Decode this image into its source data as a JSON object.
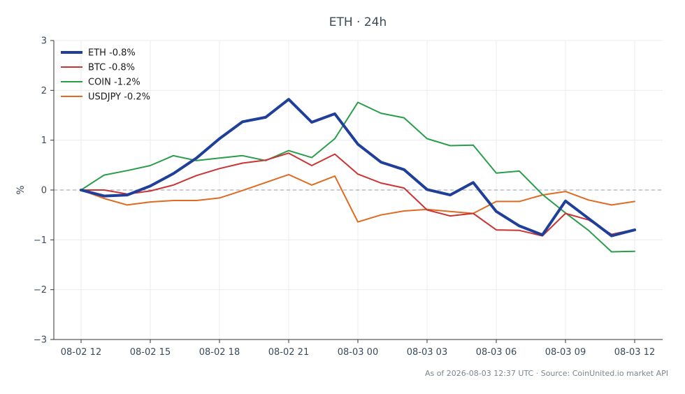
{
  "chart_data": {
    "type": "line",
    "title": "ETH · 24h",
    "xlabel": "",
    "ylabel": "%",
    "ylim": [
      -3,
      3
    ],
    "yticks": [
      3,
      2,
      1,
      0,
      -1,
      -2,
      -3
    ],
    "ytick_labels": [
      "3",
      "2",
      "1",
      "0",
      "−1",
      "−2",
      "−3"
    ],
    "x": [
      0,
      1,
      2,
      3,
      4,
      5,
      6,
      7,
      8,
      9,
      10,
      11,
      12,
      13,
      14,
      15,
      16,
      17,
      18,
      19,
      20,
      21,
      22,
      23,
      24
    ],
    "xticks": [
      0,
      3,
      6,
      9,
      12,
      15,
      18,
      21,
      24
    ],
    "xtick_labels": [
      "08-02 12",
      "08-02 15",
      "08-02 18",
      "08-02 21",
      "08-03 00",
      "08-03 03",
      "08-03 06",
      "08-03 09",
      "08-03 12"
    ],
    "grid": true,
    "zero_line": true,
    "legend_position": "top-left",
    "series": [
      {
        "name": "ETH -0.8%",
        "color": "#1f3f99",
        "width": 4,
        "values": [
          0,
          -0.12,
          -0.1,
          0.08,
          0.33,
          0.64,
          1.03,
          1.37,
          1.46,
          1.82,
          1.36,
          1.53,
          0.92,
          0.56,
          0.41,
          0.01,
          -0.1,
          0.15,
          -0.43,
          -0.72,
          -0.9,
          -0.22,
          -0.57,
          -0.92,
          -0.8
        ]
      },
      {
        "name": "BTC -0.8%",
        "color": "#cc3333",
        "width": 2,
        "values": [
          0,
          0,
          -0.08,
          -0.02,
          0.1,
          0.29,
          0.43,
          0.54,
          0.6,
          0.74,
          0.49,
          0.72,
          0.32,
          0.14,
          0.04,
          -0.4,
          -0.52,
          -0.47,
          -0.8,
          -0.81,
          -0.92,
          -0.47,
          -0.6,
          -0.89,
          -0.79
        ]
      },
      {
        "name": "COIN -1.2%",
        "color": "#2a9d4a",
        "width": 2,
        "values": [
          0,
          0.3,
          0.39,
          0.49,
          0.69,
          0.59,
          0.64,
          0.69,
          0.59,
          0.79,
          0.65,
          1.03,
          1.76,
          1.54,
          1.45,
          1.03,
          0.89,
          0.9,
          0.34,
          0.38,
          -0.09,
          -0.46,
          -0.81,
          -1.24,
          -1.23
        ]
      },
      {
        "name": "USDJPY -0.2%",
        "color": "#e06a20",
        "width": 2,
        "values": [
          0,
          -0.17,
          -0.3,
          -0.24,
          -0.21,
          -0.21,
          -0.16,
          -0.01,
          0.15,
          0.31,
          0.1,
          0.28,
          -0.64,
          -0.5,
          -0.42,
          -0.39,
          -0.43,
          -0.47,
          -0.23,
          -0.23,
          -0.1,
          -0.03,
          -0.2,
          -0.3,
          -0.23
        ]
      }
    ],
    "footer": "As of 2026-08-03 12:37 UTC · Source: CoinUnited.io market API"
  }
}
